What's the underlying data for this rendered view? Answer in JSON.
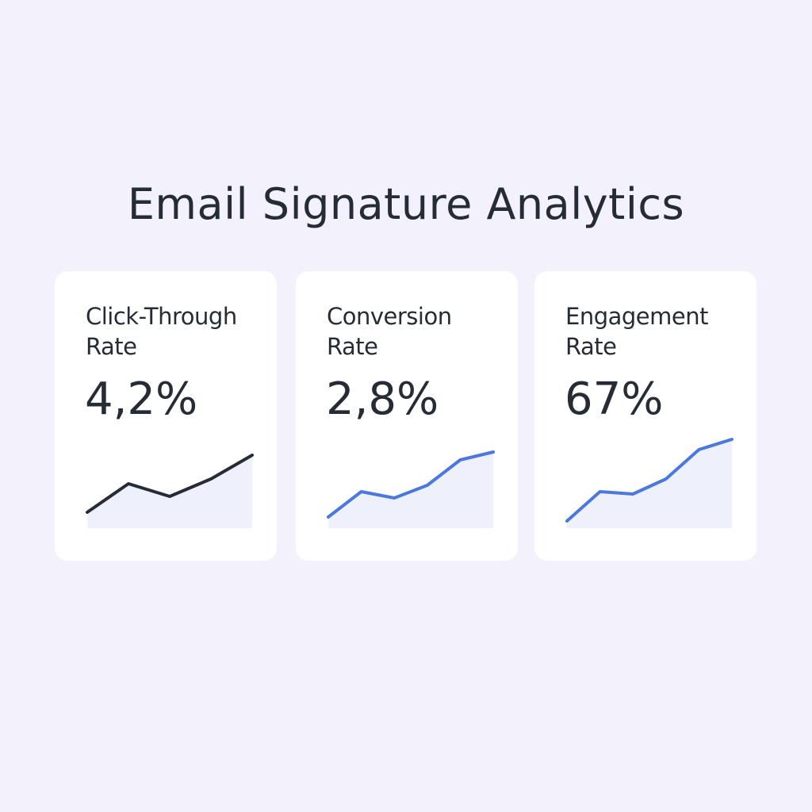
{
  "title": "Email Signature Analytics",
  "cards": [
    {
      "label": "Click-Through Rate",
      "value": "4,2%",
      "trend": {
        "type": "line",
        "values": [
          20,
          56,
          40,
          62,
          92
        ],
        "ylim": [
          0,
          120
        ],
        "color": "#262c36",
        "fill": "#eef0fb"
      }
    },
    {
      "label": "Conversion Rate",
      "value": "2,8%",
      "trend": {
        "type": "line",
        "values": [
          14,
          46,
          38,
          54,
          86,
          96
        ],
        "ylim": [
          0,
          120
        ],
        "color": "#4a78dc",
        "fill": "#eef0fb"
      }
    },
    {
      "label": "Engagement Rate",
      "value": "67%",
      "trend": {
        "type": "line",
        "values": [
          9,
          46,
          43,
          62,
          99,
          112
        ],
        "ylim": [
          0,
          120
        ],
        "color": "#4a78dc",
        "fill": "#eef0fb"
      }
    }
  ]
}
